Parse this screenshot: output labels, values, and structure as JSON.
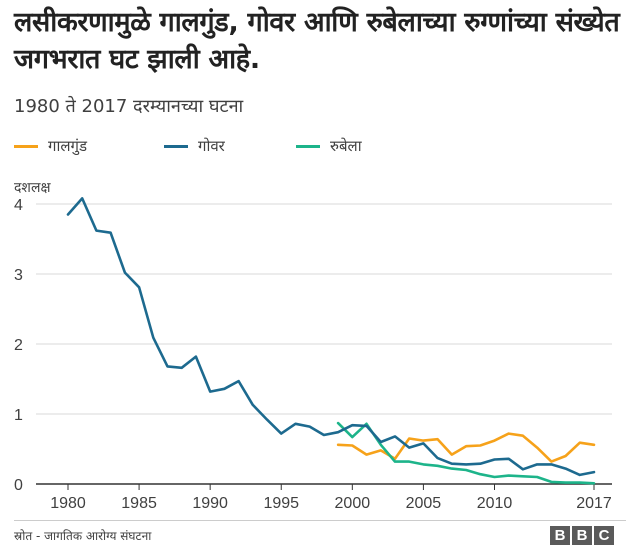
{
  "title": "लसीकरणामुळे गालगुंड, गोवर आणि रुबेलाच्या रुग्णांच्या संख्येत जगभरात घट झाली आहे.",
  "subtitle": "1980 ते 2017 दरम्यानच्या घटना",
  "source": "स्रोत - जागतिक आरोग्य संघटना",
  "logo": [
    "B",
    "B",
    "C"
  ],
  "colors": {
    "mumps": "#f6a21a",
    "measles": "#1d6a8f",
    "rubella": "#1db48a",
    "grid": "#d9d9d9",
    "axis": "#333333"
  },
  "chart_data": {
    "type": "line",
    "ylabel": "दशलक्ष",
    "ylim": [
      0,
      4.2
    ],
    "xlim": [
      1979,
      2017
    ],
    "yticks": [
      0,
      1,
      2,
      3,
      4
    ],
    "xticks": [
      1980,
      1985,
      1990,
      1995,
      2000,
      2005,
      2010,
      2017
    ],
    "grid": true,
    "legend_position": "top-left",
    "series": [
      {
        "name": "गालगुंड",
        "key": "mumps",
        "x": [
          1999,
          2000,
          2001,
          2002,
          2003,
          2004,
          2005,
          2006,
          2007,
          2008,
          2009,
          2010,
          2011,
          2012,
          2013,
          2014,
          2015,
          2016,
          2017
        ],
        "y": [
          0.56,
          0.55,
          0.42,
          0.48,
          0.36,
          0.65,
          0.62,
          0.64,
          0.42,
          0.54,
          0.55,
          0.62,
          0.72,
          0.69,
          0.52,
          0.32,
          0.4,
          0.59,
          0.56
        ]
      },
      {
        "name": "गोवर",
        "key": "measles",
        "x": [
          1980,
          1981,
          1982,
          1983,
          1984,
          1985,
          1986,
          1987,
          1988,
          1989,
          1990,
          1991,
          1992,
          1993,
          1994,
          1995,
          1996,
          1997,
          1998,
          1999,
          2000,
          2001,
          2002,
          2003,
          2004,
          2005,
          2006,
          2007,
          2008,
          2009,
          2010,
          2011,
          2012,
          2013,
          2014,
          2015,
          2016,
          2017
        ],
        "y": [
          3.85,
          4.08,
          3.62,
          3.59,
          3.02,
          2.81,
          2.09,
          1.68,
          1.66,
          1.82,
          1.32,
          1.36,
          1.47,
          1.13,
          0.92,
          0.72,
          0.86,
          0.82,
          0.7,
          0.74,
          0.84,
          0.83,
          0.6,
          0.68,
          0.52,
          0.58,
          0.37,
          0.29,
          0.28,
          0.29,
          0.35,
          0.36,
          0.21,
          0.28,
          0.28,
          0.22,
          0.13,
          0.17
        ]
      },
      {
        "name": "रुबेला",
        "key": "rubella",
        "x": [
          1999,
          2000,
          2001,
          2002,
          2003,
          2004,
          2005,
          2006,
          2007,
          2008,
          2009,
          2010,
          2011,
          2012,
          2013,
          2014,
          2015,
          2016,
          2017
        ],
        "y": [
          0.87,
          0.67,
          0.86,
          0.56,
          0.32,
          0.32,
          0.28,
          0.26,
          0.22,
          0.2,
          0.14,
          0.1,
          0.12,
          0.11,
          0.1,
          0.03,
          0.02,
          0.02,
          0.01
        ]
      }
    ]
  }
}
